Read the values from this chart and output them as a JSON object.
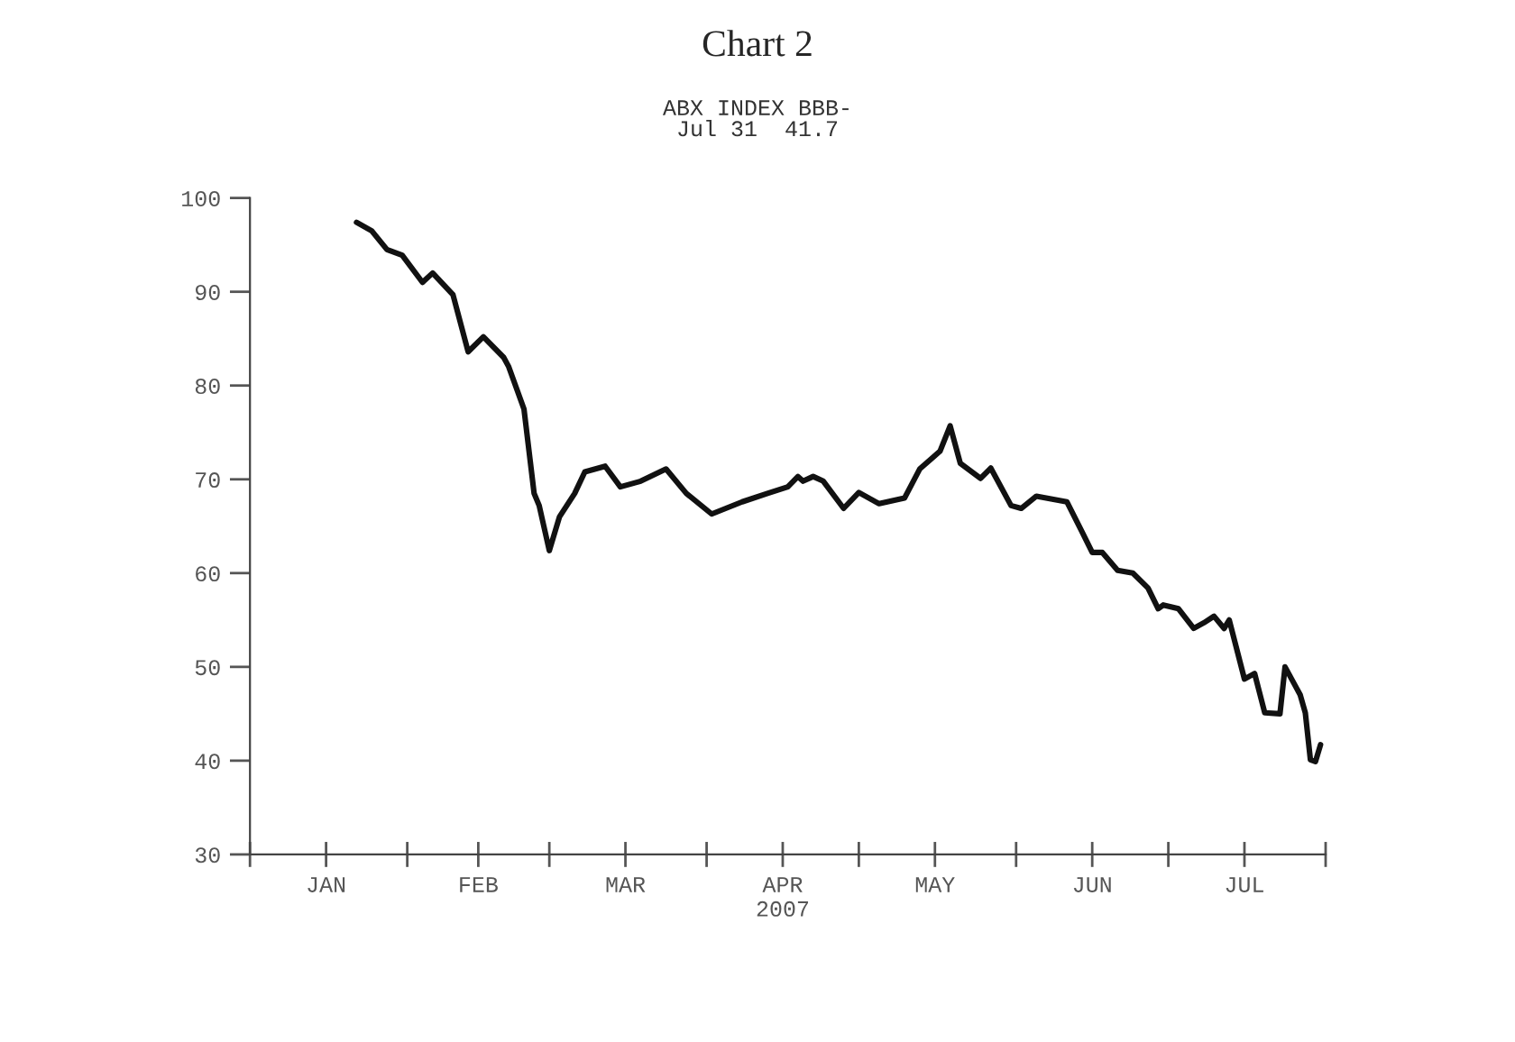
{
  "chart_data": {
    "type": "line",
    "title": "Chart 2",
    "subtitle": "ABX INDEX BBB-\nJul 31  41.7",
    "x": [
      "2007-01-22",
      "2007-01-25",
      "2007-01-28",
      "2007-01-31",
      "2007-02-04",
      "2007-02-06",
      "2007-02-10",
      "2007-02-13",
      "2007-02-16",
      "2007-02-20",
      "2007-02-21",
      "2007-02-24",
      "2007-02-26",
      "2007-02-27",
      "2007-03-01",
      "2007-03-03",
      "2007-03-06",
      "2007-03-08",
      "2007-03-12",
      "2007-03-15",
      "2007-03-19",
      "2007-03-24",
      "2007-03-28",
      "2007-04-02",
      "2007-04-08",
      "2007-04-13",
      "2007-04-17",
      "2007-04-19",
      "2007-04-20",
      "2007-04-22",
      "2007-04-24",
      "2007-04-28",
      "2007-05-01",
      "2007-05-05",
      "2007-05-10",
      "2007-05-13",
      "2007-05-17",
      "2007-05-19",
      "2007-05-21",
      "2007-05-25",
      "2007-05-27",
      "2007-05-31",
      "2007-06-02",
      "2007-06-05",
      "2007-06-11",
      "2007-06-14",
      "2007-06-16",
      "2007-06-18",
      "2007-06-21",
      "2007-06-24",
      "2007-06-27",
      "2007-06-29",
      "2007-06-30",
      "2007-07-03",
      "2007-07-06",
      "2007-07-08",
      "2007-07-10",
      "2007-07-12",
      "2007-07-13",
      "2007-07-16",
      "2007-07-18",
      "2007-07-20",
      "2007-07-23",
      "2007-07-24",
      "2007-07-26",
      "2007-07-27",
      "2007-07-28",
      "2007-07-29",
      "2007-07-30",
      "2007-07-31"
    ],
    "series": [
      {
        "color": "#111111",
        "values": [
          97.4,
          96.5,
          94.5,
          93.9,
          91.0,
          92.0,
          89.7,
          83.6,
          85.2,
          83.0,
          82.0,
          77.5,
          68.5,
          67.2,
          62.4,
          66.0,
          68.5,
          70.8,
          71.4,
          69.2,
          69.8,
          71.1,
          68.5,
          66.3,
          67.6,
          68.5,
          69.2,
          70.3,
          69.8,
          70.3,
          69.8,
          66.9,
          68.6,
          67.4,
          68.0,
          71.1,
          73.0,
          75.7,
          71.7,
          70.1,
          71.2,
          67.2,
          66.9,
          68.2,
          67.6,
          64.4,
          62.2,
          62.2,
          60.3,
          60.0,
          58.4,
          56.2,
          56.6,
          56.2,
          54.1,
          54.7,
          55.4,
          54.1,
          55.0,
          48.7,
          49.3,
          45.1,
          45.0,
          50.0,
          48.0,
          47.0,
          45.1,
          40.1,
          39.9,
          41.7
        ]
      }
    ],
    "xlim": [
      "2007-01-01",
      "2007-08-01"
    ],
    "xticks": [
      {
        "value": "2007-01-01",
        "label": null
      },
      {
        "value": "2007-01-16",
        "label": "JAN"
      },
      {
        "value": "2007-02-01",
        "label": null
      },
      {
        "value": "2007-02-15",
        "label": "FEB"
      },
      {
        "value": "2007-03-01",
        "label": null
      },
      {
        "value": "2007-03-16",
        "label": "MAR"
      },
      {
        "value": "2007-04-01",
        "label": null
      },
      {
        "value": "2007-04-16",
        "label": "APR\n2007"
      },
      {
        "value": "2007-05-01",
        "label": null
      },
      {
        "value": "2007-05-16",
        "label": "MAY"
      },
      {
        "value": "2007-06-01",
        "label": null
      },
      {
        "value": "2007-06-16",
        "label": "JUN"
      },
      {
        "value": "2007-07-01",
        "label": null
      },
      {
        "value": "2007-07-16",
        "label": "JUL"
      },
      {
        "value": "2007-08-01",
        "label": null
      }
    ],
    "ylim": [
      30,
      100
    ],
    "yticks": [
      30,
      40,
      50,
      60,
      70,
      80,
      90,
      100
    ],
    "grid": false,
    "line_style": "solid"
  }
}
